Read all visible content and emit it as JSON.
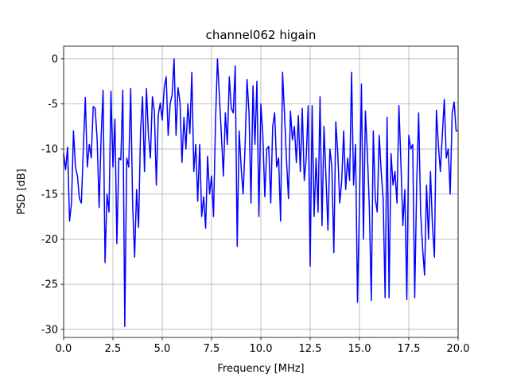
{
  "chart_data": {
    "type": "line",
    "title": "channel062 higain",
    "x_label": "Frequency [MHz]",
    "y_label": "PSD [dB]",
    "x": [
      0,
      0.1,
      0.2,
      0.3,
      0.4,
      0.5,
      0.6,
      0.7,
      0.8,
      0.9,
      1,
      1.1,
      1.2,
      1.3,
      1.4,
      1.5,
      1.6,
      1.7,
      1.8,
      1.9,
      2,
      2.1,
      2.2,
      2.3,
      2.4,
      2.5,
      2.6,
      2.7,
      2.8,
      2.9,
      3,
      3.1,
      3.2,
      3.3,
      3.4,
      3.5,
      3.6,
      3.7,
      3.8,
      3.9,
      4,
      4.1,
      4.2,
      4.3,
      4.4,
      4.5,
      4.6,
      4.7,
      4.8,
      4.9,
      5,
      5.1,
      5.2,
      5.3,
      5.4,
      5.5,
      5.6,
      5.7,
      5.8,
      5.9,
      6,
      6.1,
      6.2,
      6.3,
      6.4,
      6.5,
      6.6,
      6.7,
      6.8,
      6.9,
      7,
      7.1,
      7.2,
      7.3,
      7.4,
      7.5,
      7.6,
      7.7,
      7.8,
      7.9,
      8,
      8.1,
      8.2,
      8.3,
      8.4,
      8.5,
      8.6,
      8.7,
      8.8,
      8.9,
      9,
      9.1,
      9.2,
      9.3,
      9.4,
      9.5,
      9.6,
      9.7,
      9.8,
      9.9,
      10,
      10.1,
      10.2,
      10.3,
      10.4,
      10.5,
      10.6,
      10.7,
      10.8,
      10.9,
      11,
      11.1,
      11.2,
      11.3,
      11.4,
      11.5,
      11.6,
      11.7,
      11.8,
      11.9,
      12,
      12.1,
      12.2,
      12.3,
      12.4,
      12.5,
      12.6,
      12.7,
      12.8,
      12.9,
      13,
      13.1,
      13.2,
      13.3,
      13.4,
      13.5,
      13.6,
      13.7,
      13.8,
      13.9,
      14,
      14.1,
      14.2,
      14.3,
      14.4,
      14.5,
      14.6,
      14.7,
      14.8,
      14.9,
      15,
      15.1,
      15.2,
      15.3,
      15.4,
      15.5,
      15.6,
      15.7,
      15.8,
      15.9,
      16,
      16.1,
      16.2,
      16.3,
      16.4,
      16.5,
      16.6,
      16.7,
      16.8,
      16.9,
      17,
      17.1,
      17.2,
      17.3,
      17.4,
      17.5,
      17.6,
      17.7,
      17.8,
      17.9,
      18,
      18.1,
      18.2,
      18.3,
      18.4,
      18.5,
      18.6,
      18.7,
      18.8,
      18.9,
      19,
      19.1,
      19.2,
      19.3,
      19.4,
      19.5,
      19.6,
      19.7,
      19.8,
      19.9,
      20
    ],
    "series": [
      {
        "name": "channel062",
        "color": "blue",
        "values": [
          -10.5,
          -12.3,
          -9.8,
          -18,
          -16,
          -8,
          -12,
          -13,
          -15.5,
          -16,
          -10,
          -4.3,
          -12,
          -9.5,
          -11,
          -5.3,
          -5.5,
          -9,
          -16.5,
          -8.8,
          -3.5,
          -22.6,
          -15,
          -17,
          -3.6,
          -12,
          -6.7,
          -20.5,
          -11,
          -11.2,
          -3.5,
          -29.7,
          -11,
          -12,
          -3.3,
          -16.3,
          -22,
          -14.5,
          -18.7,
          -8,
          -4.2,
          -12.5,
          -3.3,
          -8.5,
          -11,
          -4.2,
          -5.8,
          -14,
          -6.2,
          -4.9,
          -6.8,
          -3.2,
          -2,
          -8.5,
          -5,
          -4,
          0,
          -8.5,
          -3.2,
          -4.8,
          -11.5,
          -6.5,
          -10,
          -5,
          -8.3,
          -1.5,
          -12.5,
          -9.5,
          -15.8,
          -9.5,
          -17.5,
          -15.3,
          -18.8,
          -10.8,
          -15,
          -13,
          -17.5,
          -7,
          0,
          -4.2,
          -8.5,
          -13,
          -6,
          -9.5,
          -2,
          -5.5,
          -6,
          -0.8,
          -20.8,
          -8,
          -12,
          -15,
          -9.7,
          -2.3,
          -6,
          -16,
          -3,
          -9.5,
          -2.5,
          -17.5,
          -5,
          -8.5,
          -15.3,
          -10,
          -9.7,
          -16,
          -7.5,
          -6,
          -12,
          -11,
          -18,
          -1.5,
          -6.2,
          -11.2,
          -15.5,
          -5.8,
          -9,
          -7.5,
          -11.5,
          -6.3,
          -12.5,
          -5.5,
          -13.5,
          -11,
          -5.2,
          -23,
          -5.2,
          -17.5,
          -11,
          -17,
          -4.2,
          -18.5,
          -7.5,
          -13,
          -19,
          -10,
          -12,
          -21.5,
          -7,
          -10.5,
          -16,
          -13.5,
          -8,
          -14.5,
          -11,
          -13.5,
          -1.5,
          -14,
          -9.5,
          -27,
          -16,
          -2.8,
          -20,
          -5.8,
          -10.5,
          -16.5,
          -26.8,
          -8,
          -15.5,
          -17,
          -8.5,
          -12.5,
          -15.5,
          -26.5,
          -6.5,
          -26.5,
          -10.5,
          -14,
          -12.5,
          -16,
          -5.2,
          -11.5,
          -18.5,
          -14.5,
          -26.7,
          -8.5,
          -10,
          -9.5,
          -26.5,
          -14,
          -6,
          -17,
          -21,
          -24,
          -14,
          -20,
          -12.5,
          -18.5,
          -22,
          -5.7,
          -9.6,
          -12.5,
          -8.5,
          -4.5,
          -11,
          -10,
          -15,
          -6,
          -4.8,
          -8,
          -8
        ]
      }
    ],
    "xlim": [
      0,
      20
    ],
    "xticks": [
      {
        "value": 0,
        "label": "0.0"
      },
      {
        "value": 2.5,
        "label": "2.5"
      },
      {
        "value": 5,
        "label": "5.0"
      },
      {
        "value": 7.5,
        "label": "7.5"
      },
      {
        "value": 10,
        "label": "10.0"
      },
      {
        "value": 12.5,
        "label": "12.5"
      },
      {
        "value": 15,
        "label": "15.0"
      },
      {
        "value": 17.5,
        "label": "17.5"
      },
      {
        "value": 20,
        "label": "20.0"
      }
    ],
    "ylim": [
      -30.9,
      1.4
    ],
    "yticks": [
      0,
      -5,
      -10,
      -15,
      -20,
      -25,
      -30
    ],
    "grid": true
  }
}
